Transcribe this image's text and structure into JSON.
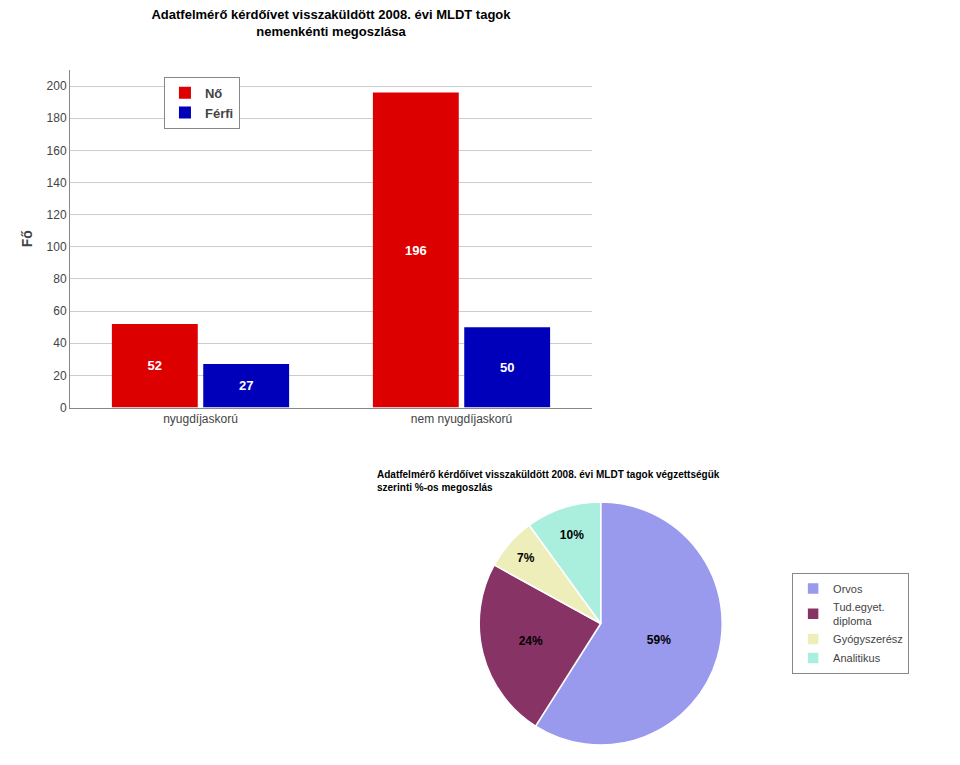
{
  "chart_data": [
    {
      "type": "bar",
      "title": "Adatfelmérő kérdőívet visszaküldött 2008. évi MLDT tagok\nnemenkénti megoszlása",
      "categories": [
        "nyugdíjaskorú",
        "nem nyugdíjaskorú"
      ],
      "series": [
        {
          "name": "Nő",
          "color": "#dd0000",
          "values": [
            52,
            196
          ]
        },
        {
          "name": "Férfi",
          "color": "#0000bb",
          "values": [
            27,
            50
          ]
        }
      ],
      "y_label": "Fő",
      "ylim": [
        0,
        210
      ],
      "yticks": [
        0,
        20,
        40,
        60,
        80,
        100,
        120,
        140,
        160,
        180,
        200
      ],
      "grid": true,
      "data_labels": true,
      "legend": "upper left"
    },
    {
      "type": "pie",
      "title": "Adatfelmérő kérdőívet visszaküldött 2008. évi MLDT tagok végzettségük\nszerinti %-os megoszlás",
      "categories": [
        "Orvos",
        "Tud.egyet.\ndiploma",
        "Gyógyszerész",
        "Analitikus"
      ],
      "values": [
        59,
        24,
        7,
        10
      ],
      "value_labels": [
        "59%",
        "24%",
        "7%",
        "10%"
      ],
      "colors": [
        "#9999ee",
        "#883366",
        "#eeeebb",
        "#aaeedd"
      ],
      "legend": "right"
    }
  ]
}
